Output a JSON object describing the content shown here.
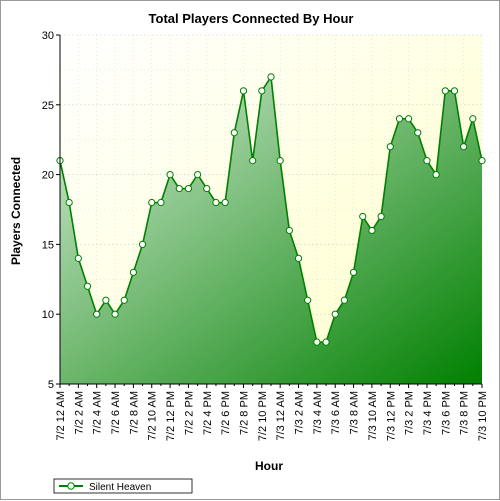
{
  "chart_data": {
    "type": "area",
    "title": "Total Players Connected By Hour",
    "xlabel": "Hour",
    "ylabel": "Players Connected",
    "ylim": [
      5,
      30
    ],
    "yticks": [
      "5",
      "10",
      "15",
      "20",
      "25",
      "30"
    ],
    "grid": true,
    "legend_position": "bottom-left",
    "x_tick_labels": [
      "7/2 12 AM",
      "7/2 2 AM",
      "7/2 4 AM",
      "7/2 6 AM",
      "7/2 8 AM",
      "7/2 10 AM",
      "7/2 12 PM",
      "7/2 2 PM",
      "7/2 4 PM",
      "7/2 6 PM",
      "7/2 8 PM",
      "7/2 10 PM",
      "7/3 12 AM",
      "7/3 2 AM",
      "7/3 4 AM",
      "7/3 6 AM",
      "7/3 8 AM",
      "7/3 10 AM",
      "7/3 12 PM",
      "7/3 2 PM",
      "7/3 4 PM",
      "7/3 6 PM",
      "7/3 8 PM",
      "7/3 10 PM"
    ],
    "series": [
      {
        "name": "Silent Heaven",
        "color": "#008000",
        "values": [
          21,
          18,
          14,
          12,
          10,
          11,
          10,
          11,
          13,
          15,
          18,
          18,
          20,
          19,
          19,
          20,
          19,
          18,
          18,
          23,
          26,
          21,
          26,
          27,
          21,
          16,
          14,
          11,
          8,
          8,
          10,
          11,
          13,
          17,
          16,
          17,
          22,
          24,
          24,
          23,
          21,
          20,
          26,
          26,
          22,
          24,
          21
        ]
      }
    ]
  }
}
